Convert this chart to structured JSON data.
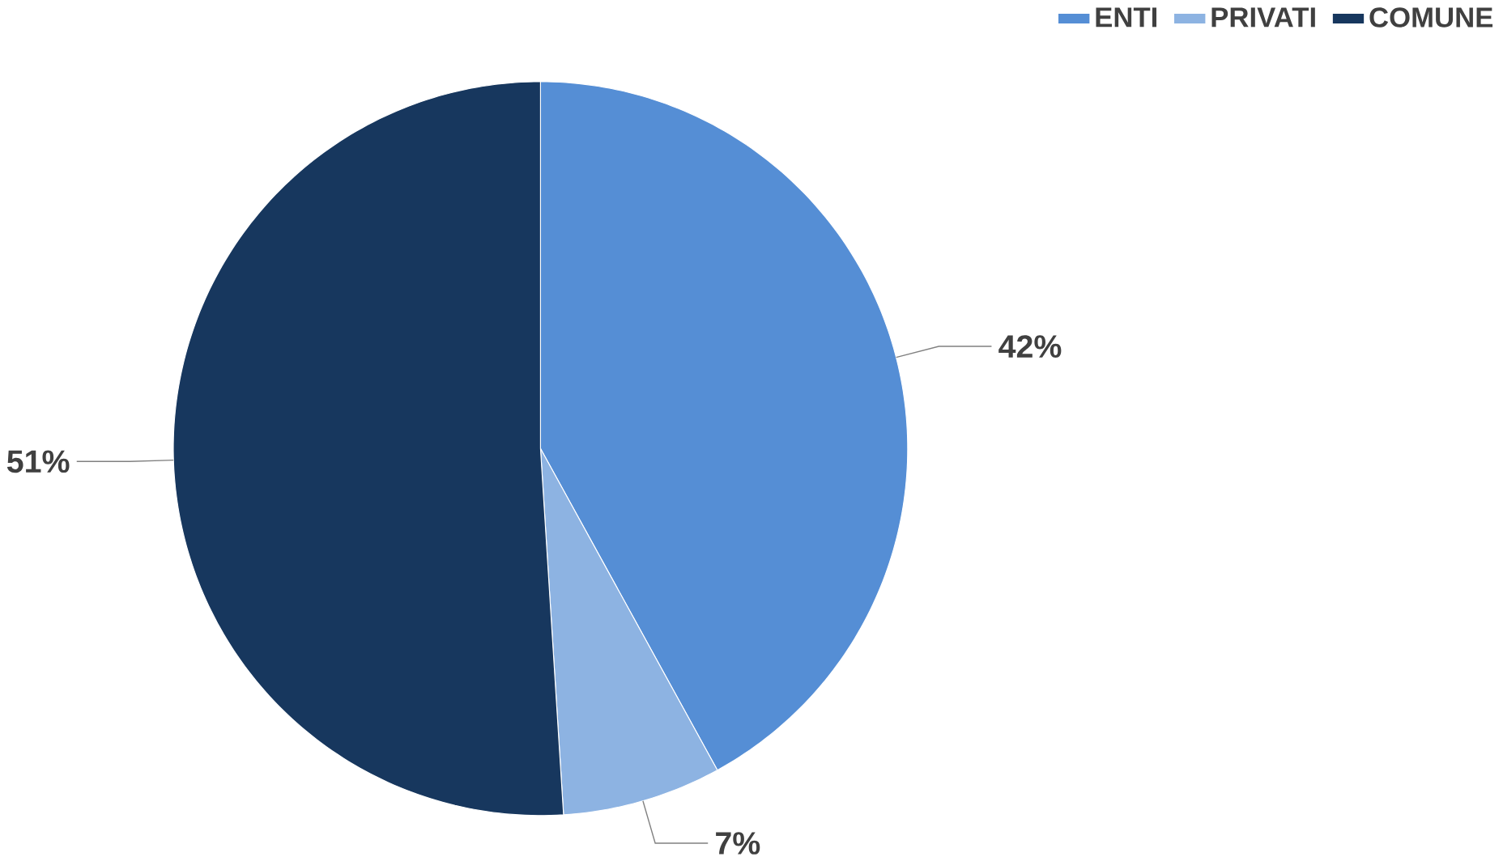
{
  "chart_data": {
    "type": "pie",
    "categories": [
      "ENTI",
      "PRIVATI",
      "COMUNE"
    ],
    "values": [
      42,
      7,
      51
    ],
    "colors": [
      "#558ed5",
      "#8db3e2",
      "#17375e"
    ],
    "value_labels": [
      "42%",
      "7%",
      "51%"
    ],
    "legend": "top right"
  }
}
